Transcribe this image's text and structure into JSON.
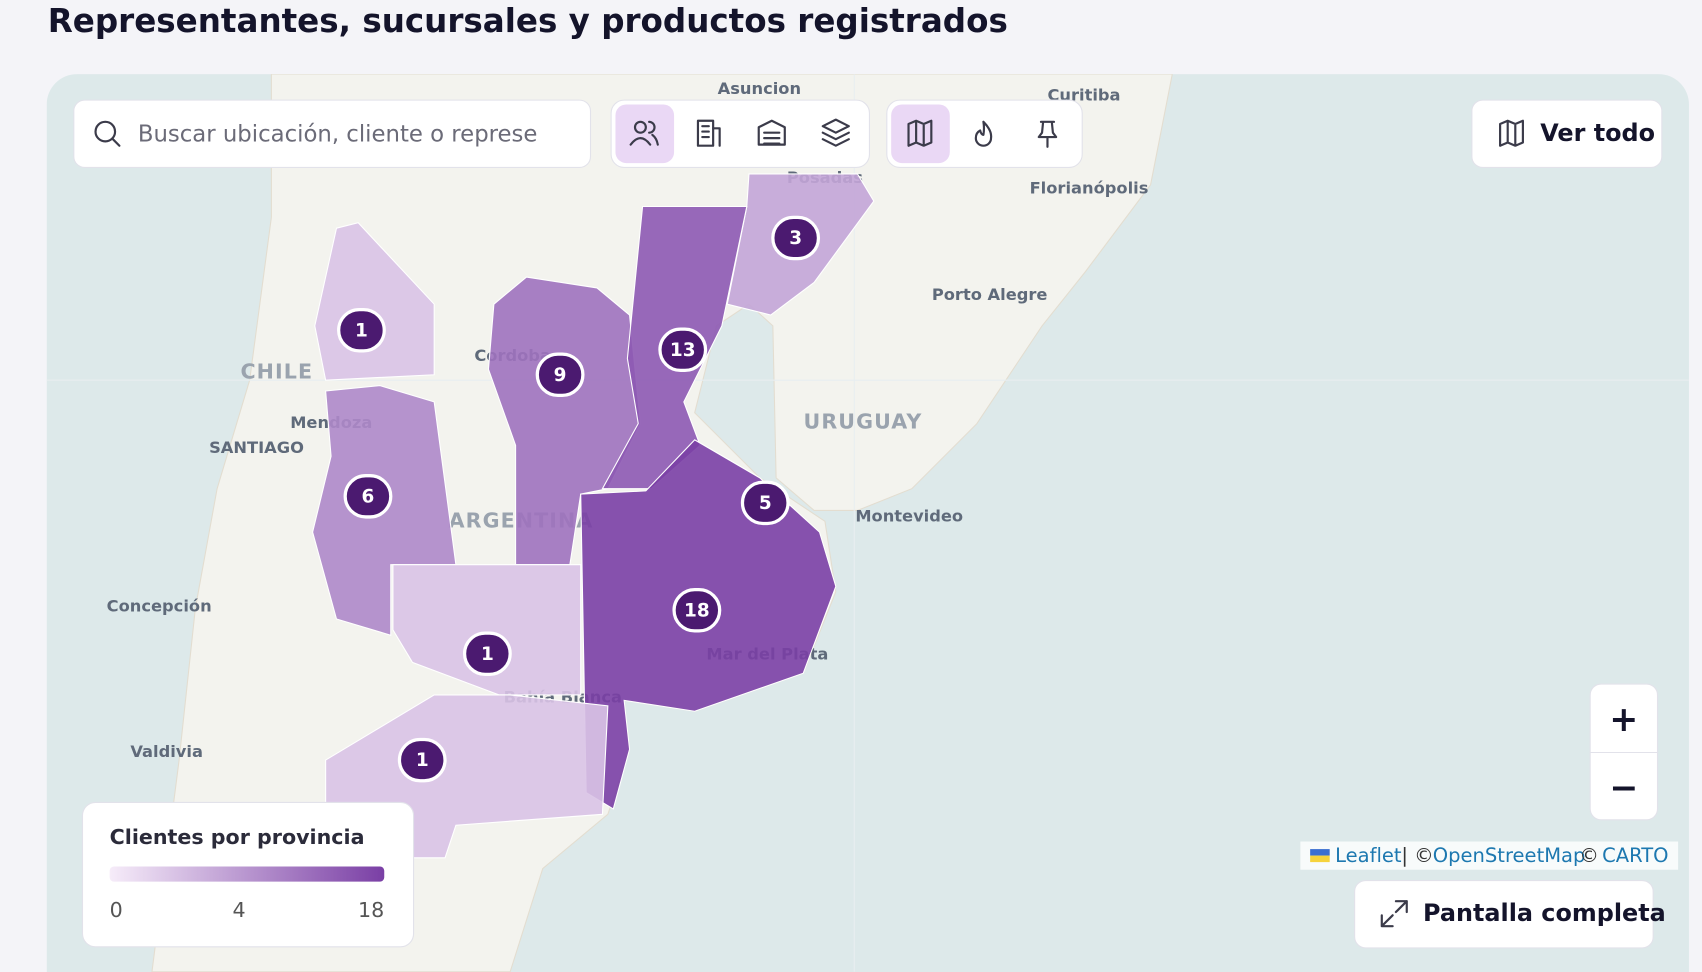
{
  "header": {
    "title": "Representantes, sucursales y productos registrados"
  },
  "search": {
    "placeholder": "Buscar ubicación, cliente o represe"
  },
  "buttons": {
    "view_all": "Ver todo",
    "fullscreen": "Pantalla completa",
    "zoom_in": "+",
    "zoom_out": "−"
  },
  "map_labels": [
    "Asuncion",
    "Curitiba",
    "Posadas",
    "Florianópolis",
    "Porto Alegre",
    "CHILE",
    "Cordoba",
    "Mendoza",
    "SANTIAGO",
    "URUGUAY",
    "ARGENTINA",
    "Montevideo",
    "Concepción",
    "Mar del Plata",
    "Bahía Blanca",
    "Valdivia"
  ],
  "clusters": [
    1,
    3,
    9,
    13,
    6,
    5,
    18,
    1,
    1
  ],
  "legend": {
    "title": "Clientes por provincia",
    "ticks": [
      0,
      4,
      18
    ],
    "scale": "sqrt",
    "colors": [
      "#f6ecf9",
      "#7a3fa5"
    ]
  },
  "attribution": {
    "leaflet": "Leaflet",
    "separator": "| ©",
    "osm": "OpenStreetMap",
    "copyright": "©",
    "carto": "CARTO"
  }
}
